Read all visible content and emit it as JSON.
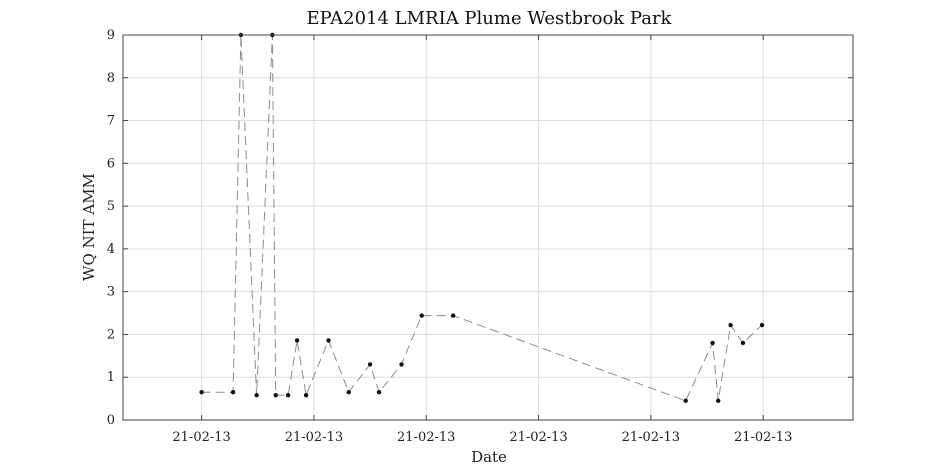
{
  "chart_data": {
    "type": "line",
    "title": "EPA2014 LMRIA Plume Westbrook Park",
    "xlabel": "Date",
    "ylabel": "WQ NIT AMM",
    "ylim": [
      0,
      9
    ],
    "xlim": [
      -7,
      58
    ],
    "x_unit": "arbitrary sample-time index",
    "y_ticks": [
      0,
      1,
      2,
      3,
      4,
      5,
      6,
      7,
      8,
      9
    ],
    "x_ticks": [
      0,
      10,
      20,
      30,
      40,
      50
    ],
    "x_tick_labels": [
      "21-02-13",
      "21-02-13",
      "21-02-13",
      "21-02-13",
      "21-02-13",
      "21-02-13"
    ],
    "grid": true,
    "line_style": "dashed",
    "marker": "dot",
    "series": [
      {
        "name": "",
        "x": [
          0,
          2.8,
          3.5,
          4.9,
          6.3,
          6.6,
          7.7,
          8.5,
          9.3,
          11.3,
          13.1,
          15.0,
          15.8,
          17.8,
          19.6,
          22.4,
          43.1,
          45.5,
          46.0,
          47.1,
          48.2,
          49.9
        ],
        "y": [
          0.65,
          0.65,
          9.0,
          0.58,
          9.0,
          0.58,
          0.58,
          1.86,
          0.58,
          1.86,
          0.65,
          1.3,
          0.65,
          1.3,
          2.44,
          2.44,
          0.45,
          1.8,
          0.45,
          2.22,
          1.8,
          2.22
        ]
      }
    ]
  }
}
